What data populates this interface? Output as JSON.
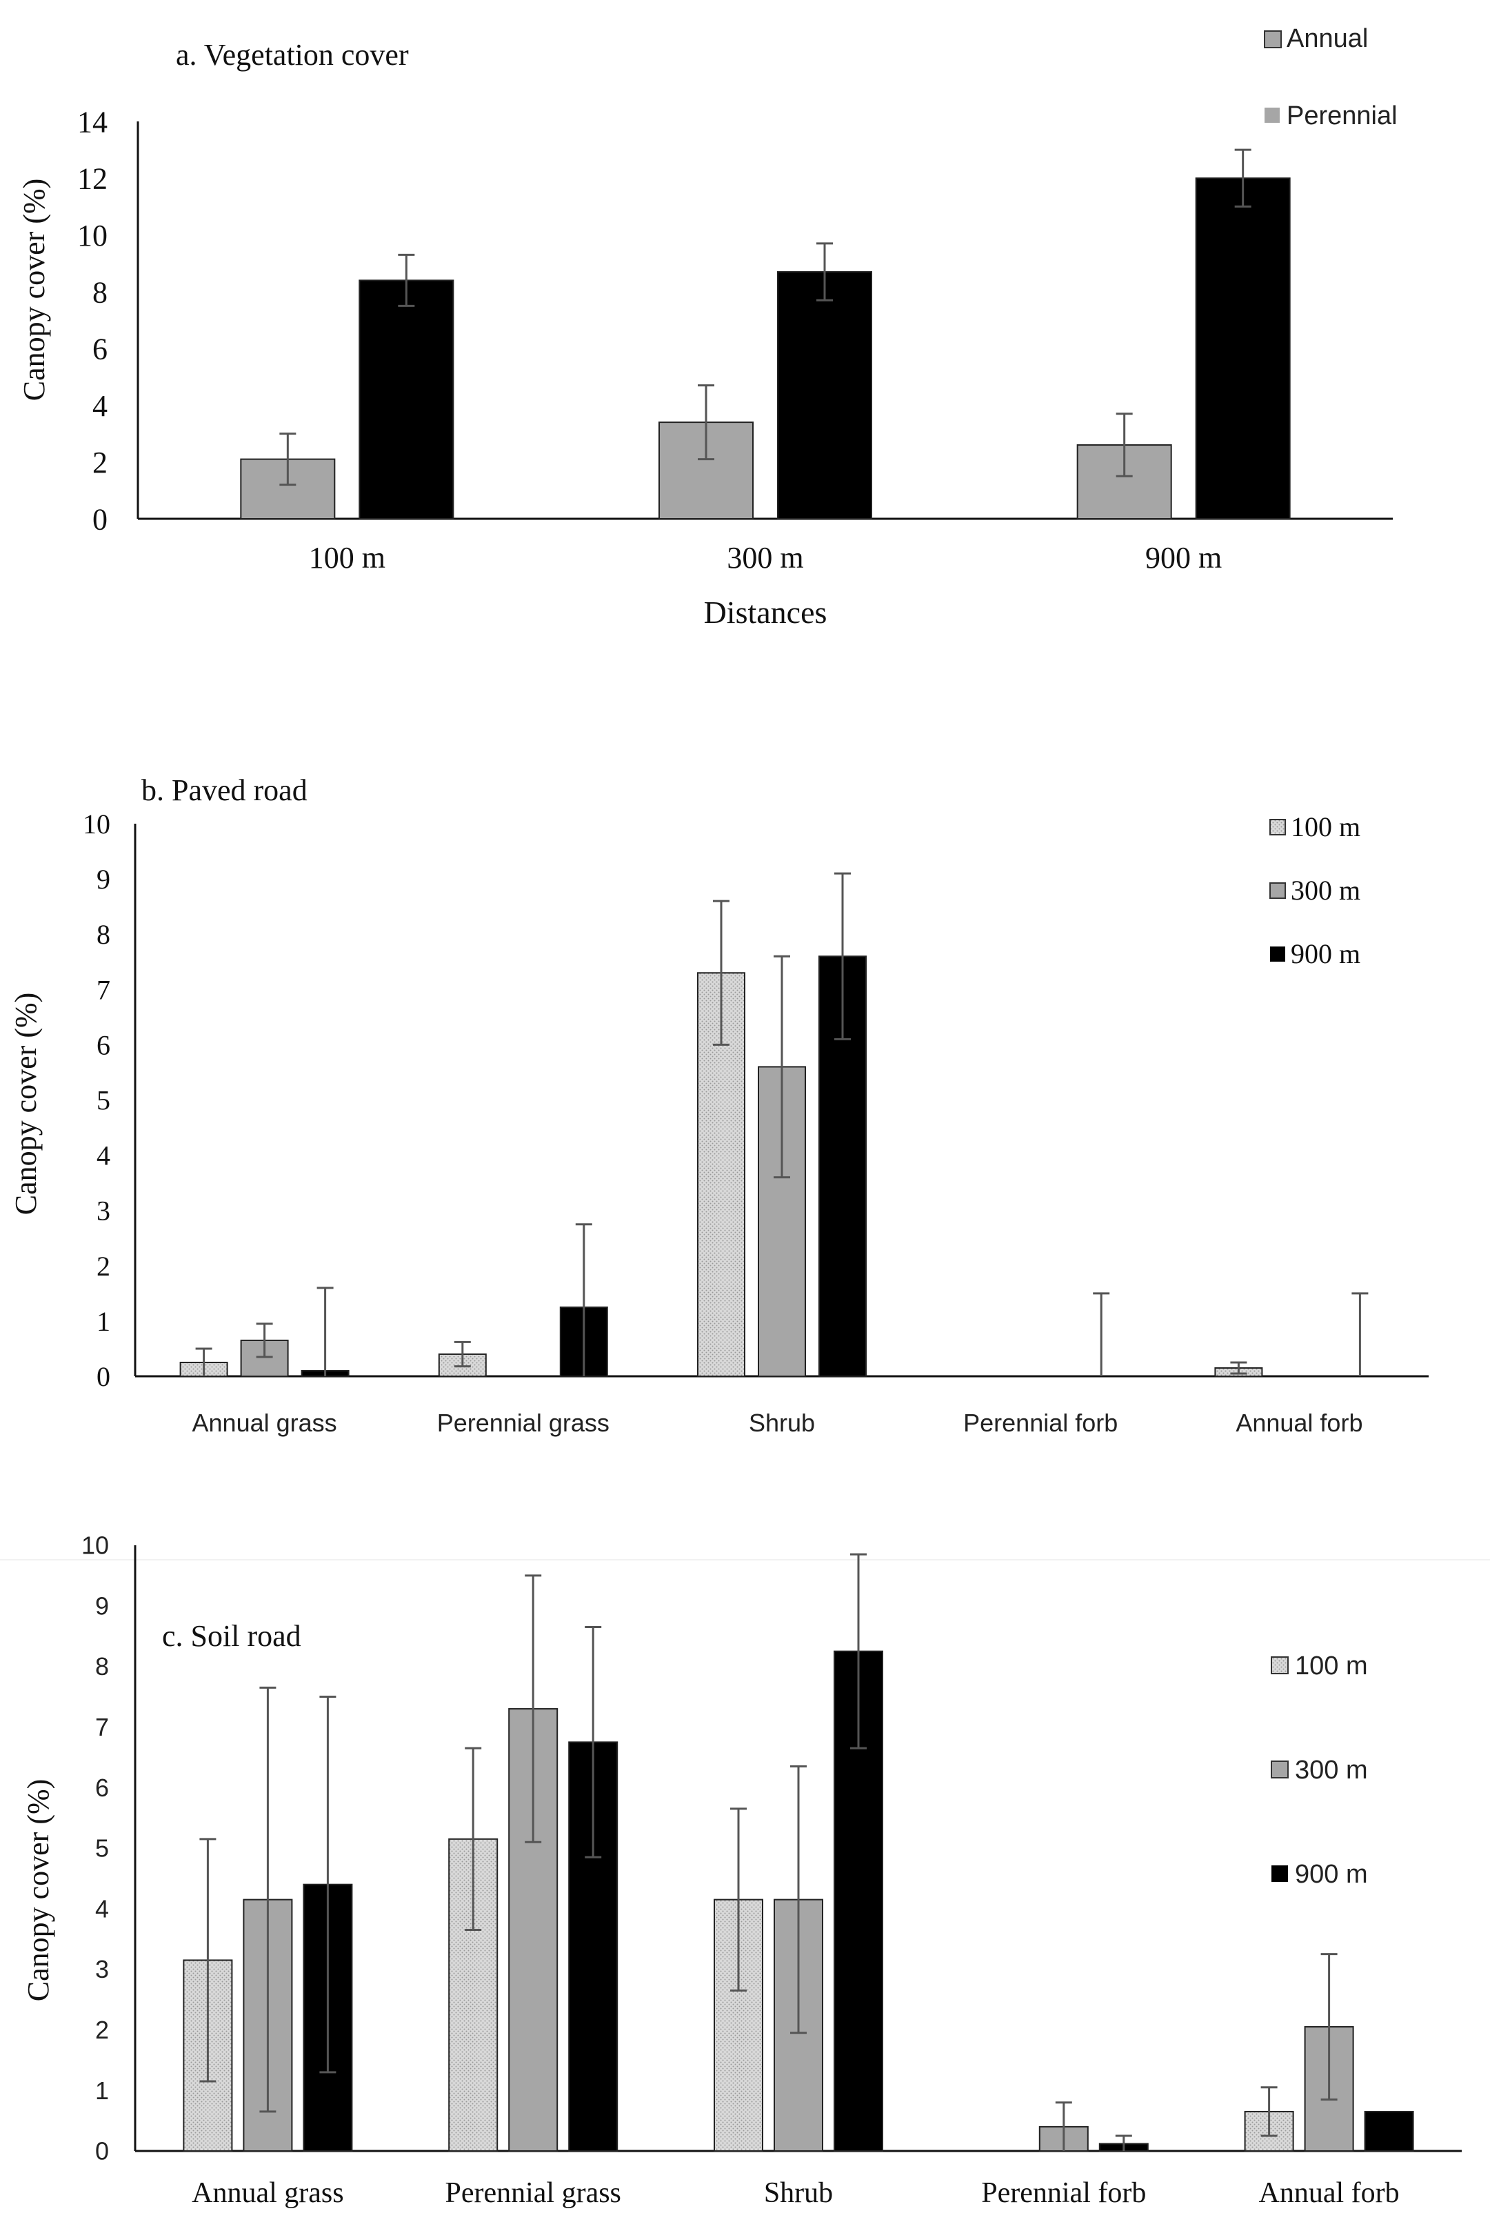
{
  "figure_name": "Canopy cover figure",
  "colors": {
    "light": "#d8d8d8",
    "mid": "#a6a6a6",
    "dark": "#000000",
    "axis": "#111111",
    "errorbar": "#555555",
    "page": "#ffffff"
  },
  "chart_data": [
    {
      "id": "a",
      "type": "bar",
      "title": "a. Vegetation cover",
      "xlabel": "Distances",
      "ylabel": "Canopy cover  (%)",
      "ylim": [
        0,
        14
      ],
      "yticks": [
        0,
        2,
        4,
        6,
        8,
        10,
        12,
        14
      ],
      "categories": [
        "100 m",
        "300 m",
        "900 m"
      ],
      "grid": false,
      "legend_position": "top-right",
      "series": [
        {
          "name": "Annual",
          "color_key": "mid",
          "values": [
            2.1,
            3.4,
            2.6
          ],
          "errors": [
            0.9,
            1.3,
            1.1
          ]
        },
        {
          "name": "Perennial",
          "color_key": "dark",
          "values": [
            8.4,
            8.7,
            12.0
          ],
          "errors": [
            0.9,
            1.0,
            1.0
          ]
        }
      ]
    },
    {
      "id": "b",
      "type": "bar",
      "title": "b. Paved road",
      "xlabel": "",
      "ylabel": "Canopy cover (%)",
      "ylim": [
        0,
        10
      ],
      "yticks": [
        0,
        1,
        2,
        3,
        4,
        5,
        6,
        7,
        8,
        9,
        10
      ],
      "categories": [
        "Annual grass",
        "Perennial grass",
        "Shrub",
        "Perennial forb",
        "Annual forb"
      ],
      "grid": false,
      "legend_position": "top-right",
      "series": [
        {
          "name": "100 m",
          "color_key": "light",
          "values": [
            0.25,
            0.4,
            7.3,
            0,
            0.15
          ],
          "errors": [
            0.25,
            0.22,
            1.3,
            0,
            0.1
          ]
        },
        {
          "name": "300 m",
          "color_key": "mid",
          "values": [
            0.65,
            0,
            5.6,
            0,
            0
          ],
          "errors": [
            0.3,
            0,
            2.0,
            0,
            0
          ]
        },
        {
          "name": "900 m",
          "color_key": "dark",
          "values": [
            0.1,
            1.25,
            7.6,
            0,
            0
          ],
          "errors": [
            1.5,
            1.5,
            1.5,
            1.5,
            1.5
          ]
        }
      ]
    },
    {
      "id": "c",
      "type": "bar",
      "title": "c. Soil road",
      "xlabel": "",
      "ylabel": "Canopy cover (%)",
      "ylim": [
        0,
        10
      ],
      "yticks": [
        0,
        1,
        2,
        3,
        4,
        5,
        6,
        7,
        8,
        9,
        10
      ],
      "categories": [
        "Annual grass",
        "Perennial grass",
        "Shrub",
        "Perennial forb",
        "Annual forb"
      ],
      "grid": false,
      "legend_position": "top-right",
      "series": [
        {
          "name": "100 m",
          "color_key": "light",
          "values": [
            3.15,
            5.15,
            4.15,
            0,
            0.65
          ],
          "errors": [
            2.0,
            1.5,
            1.5,
            0,
            0.4
          ]
        },
        {
          "name": "300 m",
          "color_key": "mid",
          "values": [
            4.15,
            7.3,
            4.15,
            0.4,
            2.05
          ],
          "errors": [
            3.5,
            2.2,
            2.2,
            0.4,
            1.2
          ]
        },
        {
          "name": "900 m",
          "color_key": "dark",
          "values": [
            4.4,
            6.75,
            8.25,
            0.12,
            0.65
          ],
          "errors": [
            3.1,
            1.9,
            1.6,
            0.13,
            0
          ]
        }
      ]
    }
  ]
}
